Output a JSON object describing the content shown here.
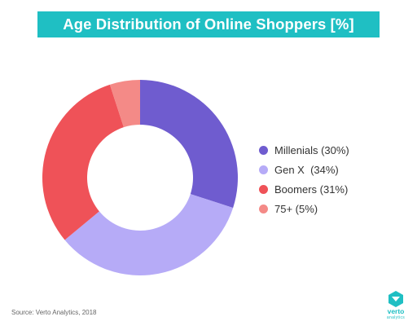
{
  "title": "Age Distribution of Online Shoppers [%]",
  "colors": {
    "title_bg": "#1fbfc3",
    "millenials": "#6f5ccf",
    "genx": "#b6abf7",
    "boomers": "#ef5258",
    "seventyfive_plus": "#f48a87"
  },
  "chart_data": {
    "type": "pie",
    "title": "Age Distribution of Online Shoppers [%]",
    "donut": true,
    "legend_position": "right",
    "slices": [
      {
        "label": "Millenials (30%)",
        "value": 30,
        "color": "#6f5ccf"
      },
      {
        "label": "Gen X  (34%)",
        "value": 34,
        "color": "#b6abf7"
      },
      {
        "label": "Boomers (31%)",
        "value": 31,
        "color": "#ef5258"
      },
      {
        "label": "75+ (5%)",
        "value": 5,
        "color": "#f48a87"
      }
    ]
  },
  "source": "Source: Verto Analytics, 2018",
  "logo": {
    "name": "verto",
    "sub": "analytics",
    "icon": "verto-logo-icon"
  }
}
